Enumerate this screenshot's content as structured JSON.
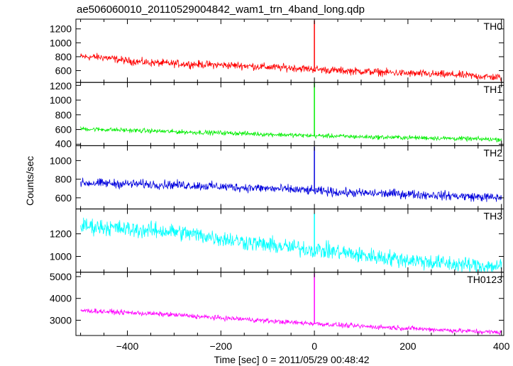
{
  "chart_data": {
    "type": "line",
    "title": "ae506060010_20110529004842_wam1_trn_4band_long.qdp",
    "xlabel": "Time [sec] 0 = 2011/05/29 00:48:42",
    "ylabel": "Counts/sec",
    "xlim": [
      -510,
      405
    ],
    "x_ticks": [
      -400,
      -200,
      0,
      200,
      400
    ],
    "grid": false,
    "panels": [
      {
        "name": "TH0",
        "color": "#ff0000",
        "ylim": [
          430,
          1340
        ],
        "y_ticks": [
          600,
          800,
          1000,
          1200
        ],
        "x": [
          -500,
          -450,
          -400,
          -350,
          -300,
          -250,
          -200,
          -150,
          -100,
          -50,
          0,
          50,
          100,
          150,
          200,
          250,
          300,
          350,
          400
        ],
        "values": [
          800,
          790,
          740,
          715,
          700,
          690,
          680,
          670,
          650,
          640,
          620,
          600,
          590,
          575,
          560,
          550,
          540,
          520,
          500
        ],
        "noise": 45,
        "spike": {
          "x": 0,
          "value": 1320
        }
      },
      {
        "name": "TH1",
        "color": "#00ee00",
        "ylim": [
          380,
          1240
        ],
        "y_ticks": [
          400,
          600,
          800,
          1000,
          1200
        ],
        "x": [
          -500,
          -450,
          -400,
          -350,
          -300,
          -250,
          -200,
          -150,
          -100,
          -50,
          0,
          50,
          100,
          150,
          200,
          250,
          300,
          350,
          400
        ],
        "values": [
          610,
          600,
          590,
          580,
          570,
          560,
          555,
          545,
          535,
          525,
          515,
          510,
          500,
          495,
          490,
          485,
          478,
          470,
          465
        ],
        "noise": 25,
        "spike": {
          "x": 0,
          "value": 1230
        }
      },
      {
        "name": "TH2",
        "color": "#0000dd",
        "ylim": [
          480,
          1160
        ],
        "y_ticks": [
          600,
          800,
          1000
        ],
        "x": [
          -500,
          -450,
          -400,
          -350,
          -300,
          -250,
          -200,
          -150,
          -100,
          -50,
          0,
          50,
          100,
          150,
          200,
          250,
          300,
          350,
          400
        ],
        "values": [
          760,
          755,
          750,
          745,
          740,
          730,
          720,
          710,
          700,
          690,
          675,
          660,
          650,
          645,
          640,
          630,
          620,
          610,
          600
        ],
        "noise": 40,
        "spike": {
          "x": 0,
          "value": 1150
        }
      },
      {
        "name": "TH3",
        "color": "#00ffff",
        "ylim": [
          860,
          1420
        ],
        "y_ticks": [
          1000,
          1200
        ],
        "x": [
          -500,
          -450,
          -400,
          -350,
          -300,
          -250,
          -200,
          -150,
          -100,
          -50,
          0,
          50,
          100,
          150,
          200,
          250,
          300,
          350,
          400
        ],
        "values": [
          1270,
          1260,
          1240,
          1230,
          1220,
          1190,
          1160,
          1130,
          1100,
          1080,
          1060,
          1040,
          1010,
          990,
          970,
          950,
          930,
          920,
          910
        ],
        "noise": 60,
        "spike": {
          "x": 0,
          "value": 1380
        }
      },
      {
        "name": "TH0123",
        "color": "#ff00ff",
        "ylim": [
          2300,
          5200
        ],
        "y_ticks": [
          3000,
          4000,
          5000
        ],
        "x": [
          -500,
          -450,
          -400,
          -350,
          -300,
          -250,
          -200,
          -150,
          -100,
          -50,
          0,
          50,
          100,
          150,
          200,
          250,
          300,
          350,
          400
        ],
        "values": [
          3450,
          3400,
          3350,
          3300,
          3250,
          3170,
          3100,
          3050,
          2970,
          2900,
          2850,
          2780,
          2720,
          2680,
          2630,
          2580,
          2530,
          2480,
          2440
        ],
        "noise": 90,
        "spike": {
          "x": 0,
          "value": 5150
        }
      }
    ]
  }
}
